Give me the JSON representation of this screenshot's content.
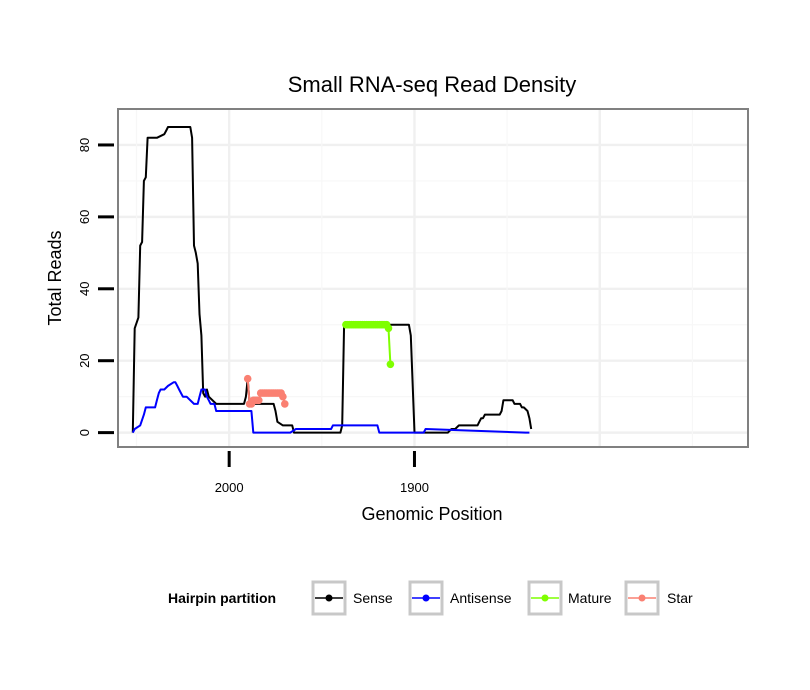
{
  "chart_data": {
    "type": "line",
    "title": "Small RNA-seq Read Density",
    "xlabel": "Genomic Position",
    "ylabel": "Total Reads",
    "xlim": [
      2060,
      1720
    ],
    "ylim": [
      -4,
      90
    ],
    "x_reversed": true,
    "x_ticks": [
      2000,
      1900
    ],
    "y_ticks": [
      0,
      20,
      40,
      60,
      80
    ],
    "grid": true,
    "legend": {
      "title": "Hairpin partition",
      "position": "bottom",
      "entries": [
        {
          "label": "Sense",
          "color": "#000000"
        },
        {
          "label": "Antisense",
          "color": "#0000ff"
        },
        {
          "label": "Mature",
          "color": "#7fff00"
        },
        {
          "label": "Star",
          "color": "#fa8072"
        }
      ]
    },
    "series": [
      {
        "name": "Sense",
        "color": "#000000",
        "style": "line",
        "x": [
          2052,
          2051,
          2049,
          2048,
          2047,
          2046,
          2045,
          2044,
          2043,
          2042,
          2041,
          2040,
          2039,
          2035,
          2034,
          2033,
          2031,
          2021,
          2020,
          2019,
          2018,
          2017,
          2016,
          2015,
          2014,
          2013,
          2012,
          2011,
          2007,
          2006,
          2003,
          2002,
          2001,
          1992,
          1991,
          1990,
          1989,
          1988,
          1987,
          1986,
          1985,
          1984,
          1976,
          1975,
          1974,
          1971,
          1970,
          1966,
          1965,
          1957,
          1956,
          1940,
          1939,
          1938,
          1937,
          1936,
          1935,
          1934,
          1933,
          1932,
          1903,
          1902,
          1900,
          1885,
          1884,
          1882,
          1880,
          1879,
          1878,
          1876,
          1874,
          1870,
          1869,
          1866,
          1865,
          1864,
          1863,
          1862,
          1854,
          1853,
          1852,
          1848,
          1847,
          1846,
          1845,
          1844,
          1843,
          1842,
          1841,
          1839,
          1838,
          1837
        ],
        "y": [
          0,
          29,
          32,
          52,
          53,
          70,
          71,
          82,
          82,
          82,
          82,
          82,
          82,
          83,
          84,
          85,
          85,
          85,
          82,
          52,
          50,
          47,
          33,
          27,
          11,
          10,
          12,
          10,
          8,
          8,
          8,
          8,
          8,
          8,
          10,
          15,
          8,
          8,
          8,
          8,
          8,
          8,
          8,
          6,
          3,
          2,
          2,
          2,
          0,
          0,
          0,
          0,
          2,
          30,
          30,
          30,
          30,
          30,
          30,
          30,
          30,
          27,
          0,
          0,
          0,
          0,
          1,
          1,
          1,
          2,
          2,
          2,
          2,
          2,
          3,
          4,
          4,
          5,
          5,
          6,
          9,
          9,
          9,
          8,
          8,
          8,
          8,
          7,
          7,
          6,
          4,
          1
        ]
      },
      {
        "name": "Antisense",
        "color": "#0000ff",
        "style": "line",
        "x": [
          2052,
          2051,
          2048,
          2046,
          2045,
          2044,
          2043,
          2040,
          2039,
          2038,
          2037,
          2035,
          2033,
          2030,
          2029,
          2028,
          2027,
          2026,
          2025,
          2023,
          2019,
          2017,
          2016,
          2015,
          2013,
          2012,
          2011,
          2010,
          2008,
          2007,
          1990,
          1988,
          1987,
          1967,
          1964,
          1961,
          1945,
          1944,
          1920,
          1919,
          1895,
          1894,
          1840,
          1838
        ],
        "y": [
          0,
          1,
          2,
          5,
          7,
          7,
          7,
          7,
          9,
          11,
          12,
          12,
          13,
          14,
          14,
          13,
          12,
          11,
          10,
          10,
          8,
          8,
          10,
          12,
          12,
          10,
          9,
          8,
          8,
          6,
          6,
          6,
          0,
          0,
          1,
          1,
          1,
          2,
          2,
          0,
          0,
          1,
          0,
          0
        ]
      },
      {
        "name": "Mature",
        "color": "#7fff00",
        "style": "points",
        "x": [
          1937,
          1936,
          1935,
          1934,
          1933,
          1932,
          1931,
          1930,
          1929,
          1928,
          1927,
          1926,
          1925,
          1924,
          1923,
          1922,
          1921,
          1920,
          1919,
          1918,
          1917,
          1916,
          1915,
          1914,
          1913
        ],
        "y": [
          30,
          30,
          30,
          30,
          30,
          30,
          30,
          30,
          30,
          30,
          30,
          30,
          30,
          30,
          30,
          30,
          30,
          30,
          30,
          30,
          30,
          30,
          30,
          29,
          19
        ]
      },
      {
        "name": "Star",
        "color": "#fa8072",
        "style": "points",
        "x": [
          1990,
          1989,
          1988,
          1987,
          1986,
          1985,
          1984,
          1983,
          1982,
          1981,
          1980,
          1979,
          1978,
          1977,
          1976,
          1975,
          1974,
          1973,
          1972,
          1971,
          1970
        ],
        "y": [
          15,
          8,
          8,
          9,
          9,
          9,
          9,
          11,
          11,
          11,
          11,
          11,
          11,
          11,
          11,
          11,
          11,
          11,
          11,
          10,
          8
        ]
      }
    ]
  }
}
